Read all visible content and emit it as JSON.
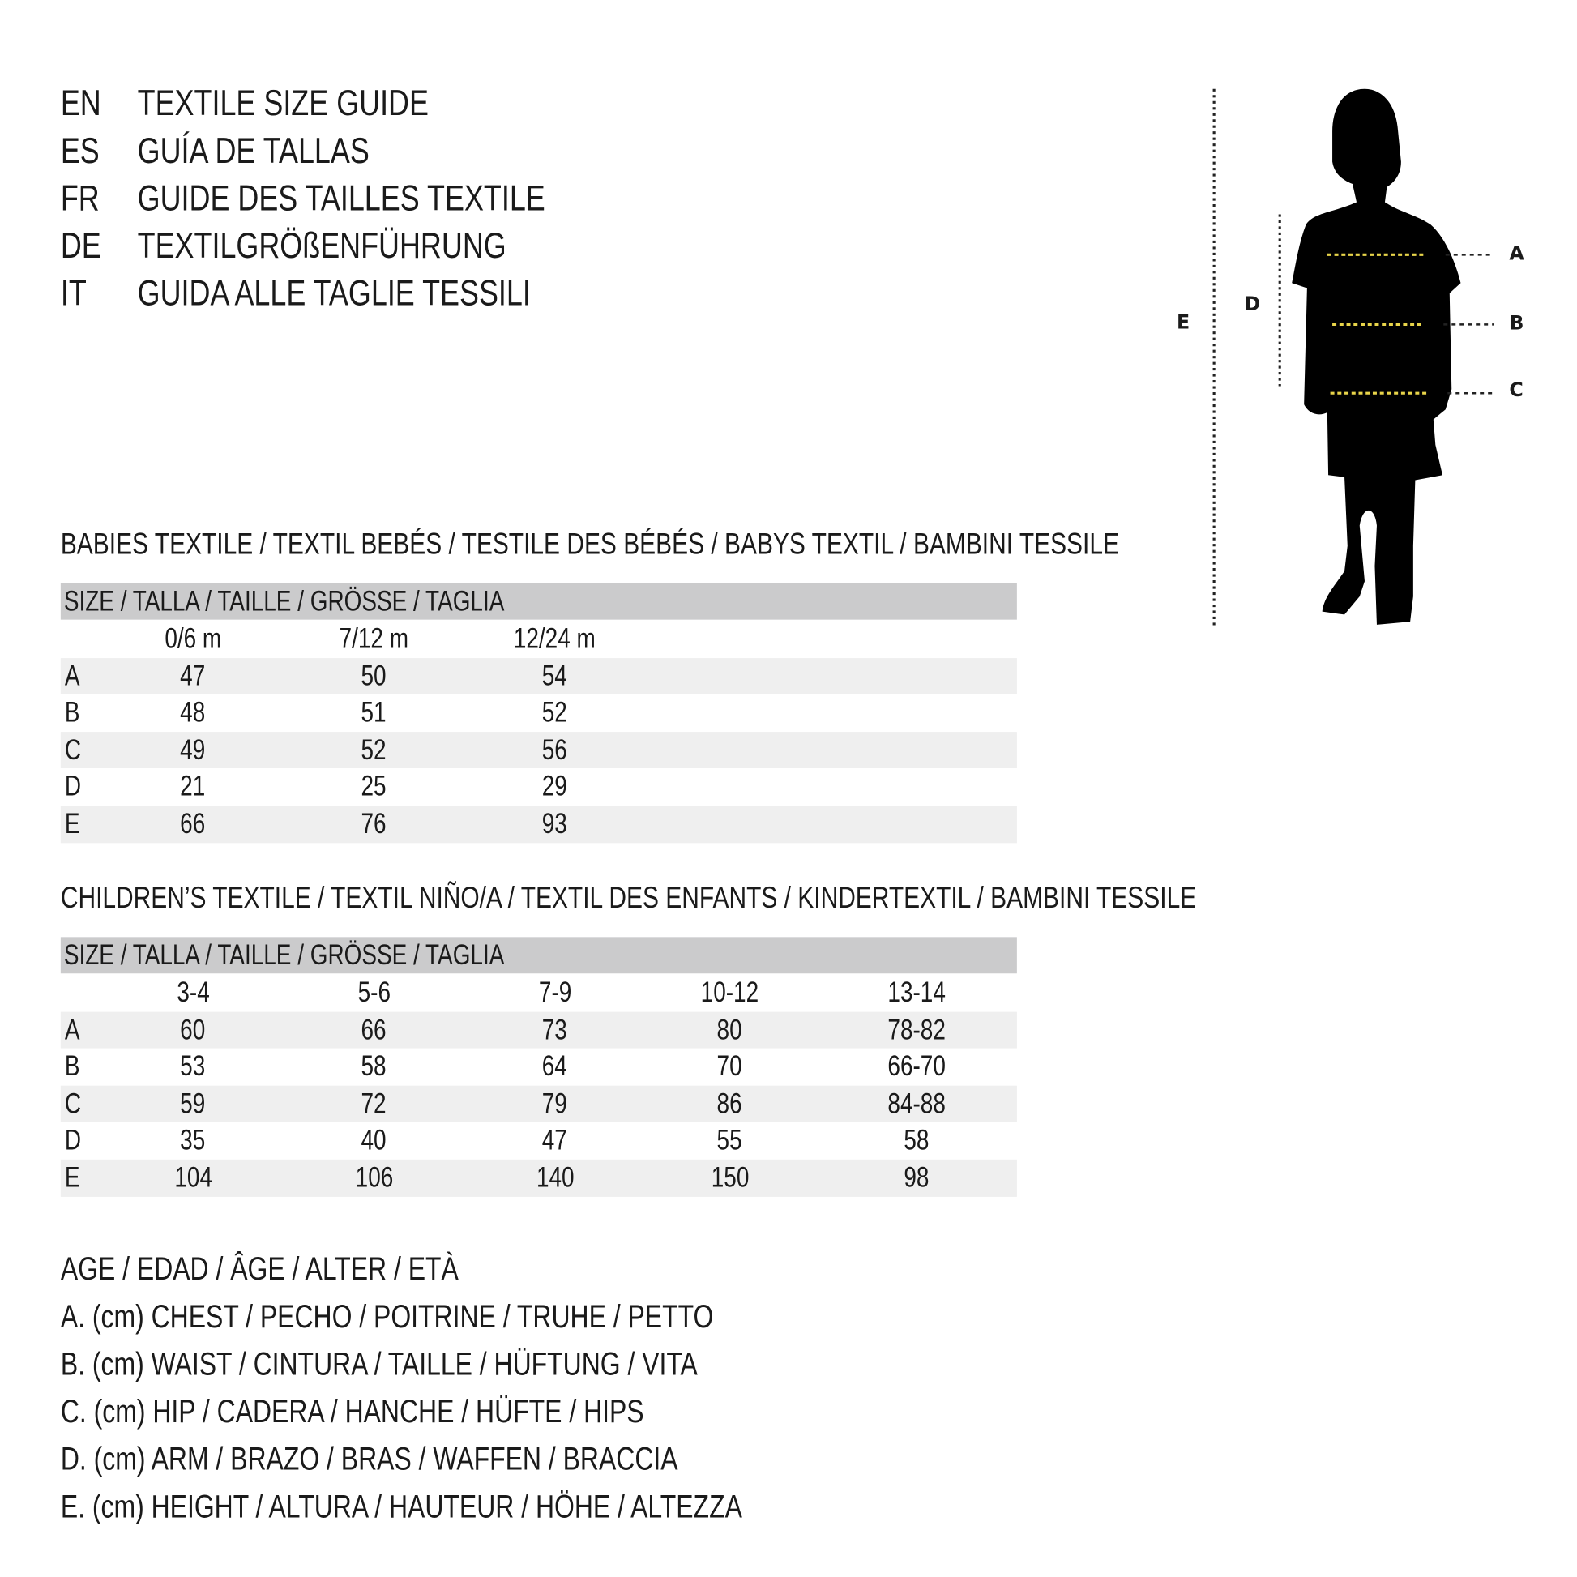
{
  "titles": [
    {
      "lang": "EN",
      "text": "TEXTILE SIZE GUIDE"
    },
    {
      "lang": "ES",
      "text": "GUÍA DE TALLAS"
    },
    {
      "lang": "FR",
      "text": "GUIDE DES TAILLES TEXTILE"
    },
    {
      "lang": "DE",
      "text": "TEXTILGRÖßENFÜHRUNG"
    },
    {
      "lang": "IT",
      "text": "GUIDA ALLE TAGLIE TESSILI"
    }
  ],
  "figure": {
    "labels": {
      "A": "A",
      "B": "B",
      "C": "C",
      "D": "D",
      "E": "E"
    },
    "accent_color": "#e8d44a"
  },
  "babies": {
    "heading": "BABIES TEXTILE / TEXTIL BEBÉS / TESTILE DES BÉBÉS / BABYS TEXTIL / BAMBINI TESSILE",
    "size_header": "SIZE / TALLA / TAILLE / GRÖSSE / TAGLIA",
    "columns": [
      "0/6 m",
      "7/12 m",
      "12/24 m"
    ],
    "rows": [
      {
        "label": "A",
        "values": [
          "47",
          "50",
          "54"
        ]
      },
      {
        "label": "B",
        "values": [
          "48",
          "51",
          "52"
        ]
      },
      {
        "label": "C",
        "values": [
          "49",
          "52",
          "56"
        ]
      },
      {
        "label": "D",
        "values": [
          "21",
          "25",
          "29"
        ]
      },
      {
        "label": "E",
        "values": [
          "66",
          "76",
          "93"
        ]
      }
    ]
  },
  "children": {
    "heading": "CHILDREN’S TEXTILE / TEXTIL NIÑO/A / TEXTIL DES ENFANTS / KINDERTEXTIL / BAMBINI TESSILE",
    "size_header": "SIZE / TALLA / TAILLE / GRÖSSE / TAGLIA",
    "columns": [
      "3-4",
      "5-6",
      "7-9",
      "10-12",
      "13-14"
    ],
    "rows": [
      {
        "label": "A",
        "values": [
          "60",
          "66",
          "73",
          "80",
          "78-82"
        ]
      },
      {
        "label": "B",
        "values": [
          "53",
          "58",
          "64",
          "70",
          "66-70"
        ]
      },
      {
        "label": "C",
        "values": [
          "59",
          "72",
          "79",
          "86",
          "84-88"
        ]
      },
      {
        "label": "D",
        "values": [
          "35",
          "40",
          "47",
          "55",
          "58"
        ]
      },
      {
        "label": "E",
        "values": [
          "104",
          "106",
          "140",
          "150",
          "98"
        ]
      }
    ]
  },
  "legend": [
    "AGE / EDAD / ÂGE / ALTER / ETÀ",
    "A. (cm) CHEST / PECHO / POITRINE / TRUHE / PETTO",
    "B. (cm) WAIST / CINTURA / TAILLE / HÜFTUNG / VITA",
    "C. (cm) HIP / CADERA / HANCHE / HÜFTE / HIPS",
    "D. (cm) ARM / BRAZO / BRAS / WAFFEN / BRACCIA",
    "E. (cm) HEIGHT / ALTURA / HAUTEUR / HÖHE / ALTEZZA"
  ]
}
